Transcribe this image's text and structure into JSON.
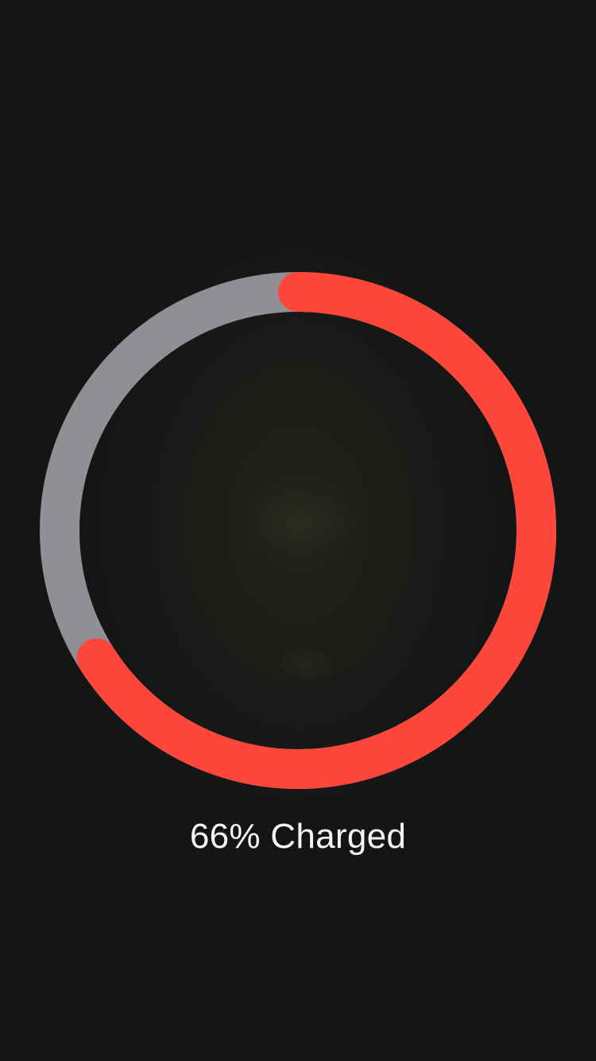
{
  "battery": {
    "percent": 66,
    "status_text": "66% Charged"
  },
  "colors": {
    "background": "#141615",
    "ring_fill": "#ff463b",
    "ring_track": "#908f94",
    "text": "#f4f4f2"
  }
}
